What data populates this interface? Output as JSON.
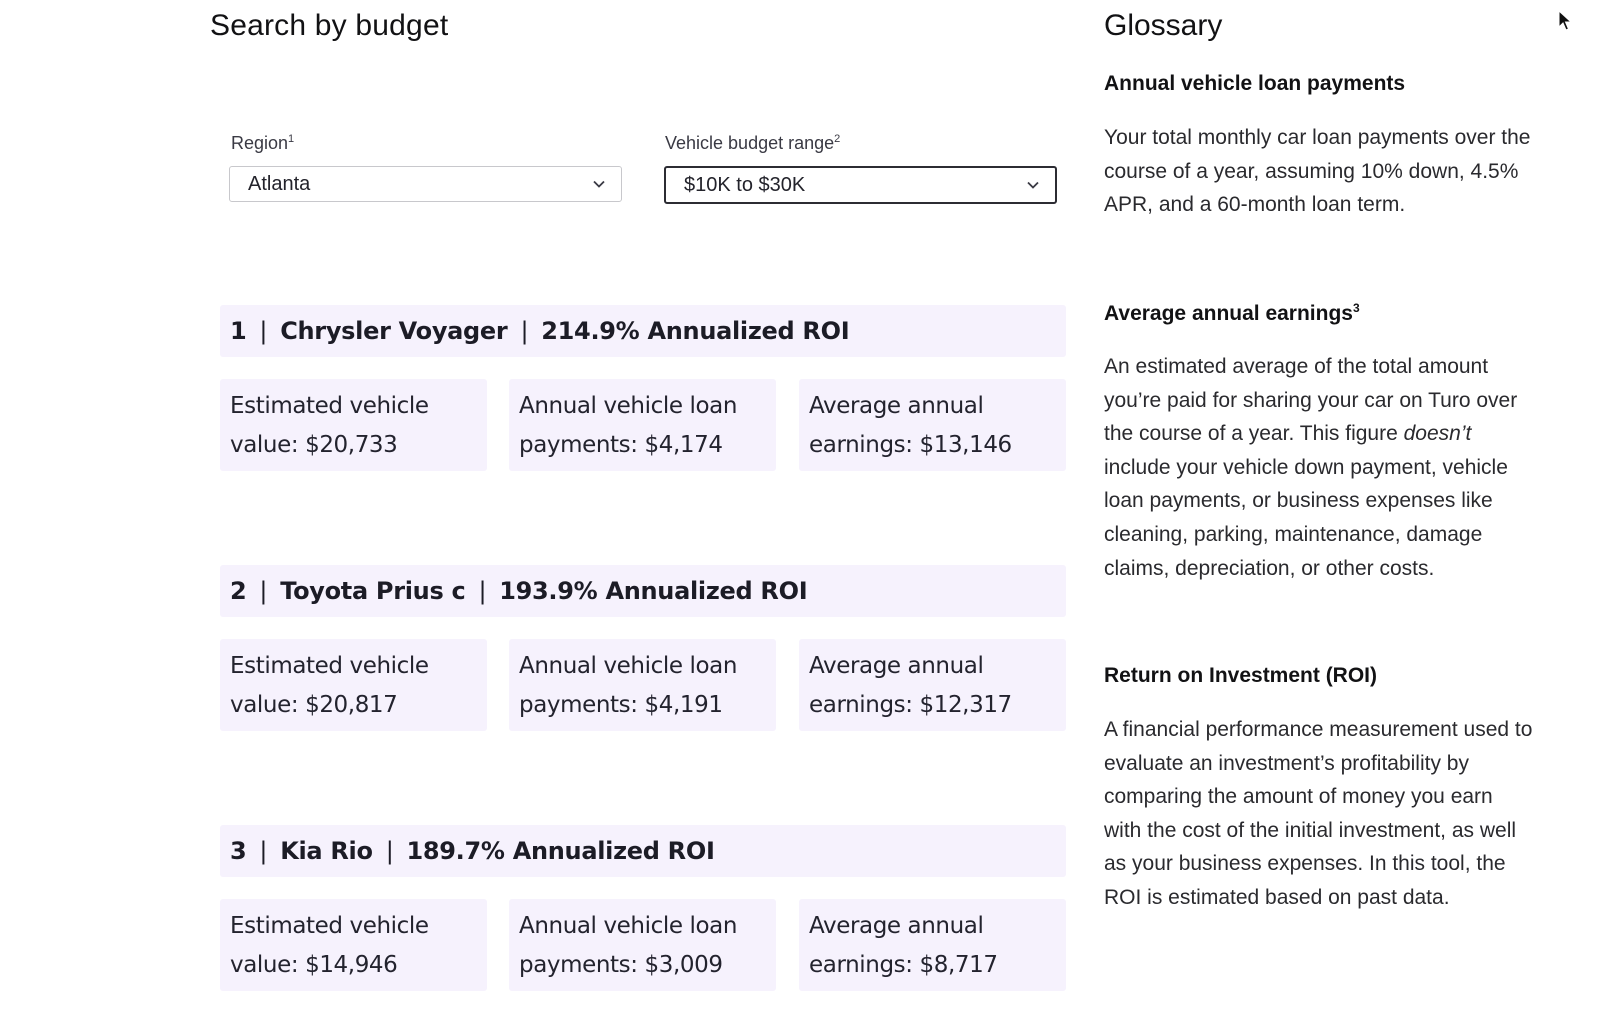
{
  "search": {
    "title": "Search by budget",
    "region": {
      "label": "Region",
      "footnote": "1",
      "value": "Atlanta"
    },
    "budget": {
      "label": "Vehicle budget range",
      "footnote": "2",
      "value": "$10K to $30K"
    }
  },
  "results": [
    {
      "rank": "1",
      "vehicle": "Chrysler Voyager",
      "roi": "214.9% Annualized ROI",
      "value_text": "Estimated vehicle value: $20,733",
      "loan_text": "Annual vehicle loan payments: $4,174",
      "earnings_text": "Average annual earnings: $13,146"
    },
    {
      "rank": "2",
      "vehicle": "Toyota Prius c",
      "roi": "193.9% Annualized ROI",
      "value_text": "Estimated vehicle value: $20,817",
      "loan_text": "Annual vehicle loan payments: $4,191",
      "earnings_text": "Average annual earnings: $12,317"
    },
    {
      "rank": "3",
      "vehicle": "Kia Rio",
      "roi": "189.7% Annualized ROI",
      "value_text": "Estimated vehicle value: $14,946",
      "loan_text": "Annual vehicle loan payments: $3,009",
      "earnings_text": "Average annual earnings: $8,717"
    }
  ],
  "glossary": {
    "title": "Glossary",
    "loan": {
      "term": "Annual vehicle loan payments",
      "definition": "Your total monthly car loan payments over the course of a year, assuming 10% down, 4.5% APR, and a 60-month loan term."
    },
    "earnings": {
      "term": "Average annual earnings",
      "footnote": "3",
      "def_before": "An estimated average of the total amount you’re paid for sharing your car on Turo over the course of a year. This figure ",
      "def_em": "doesn’t",
      "def_after": " include your vehicle down payment, vehicle loan payments, or business expenses like cleaning, parking, maintenance, damage claims, depreciation, or other costs."
    },
    "roi": {
      "term": "Return on Investment (ROI)",
      "definition": "A financial performance measurement used to evaluate an investment’s profitability by comparing the amount of money you earn with the cost of the initial investment, as well as your business expenses. In this tool, the ROI is estimated based on past data."
    }
  },
  "icons": {
    "dropdown": "chevron-down-icon",
    "pointer": "mouse-pointer-icon"
  },
  "colors": {
    "card_bg": "#f6f2fd",
    "text": "#121214"
  }
}
